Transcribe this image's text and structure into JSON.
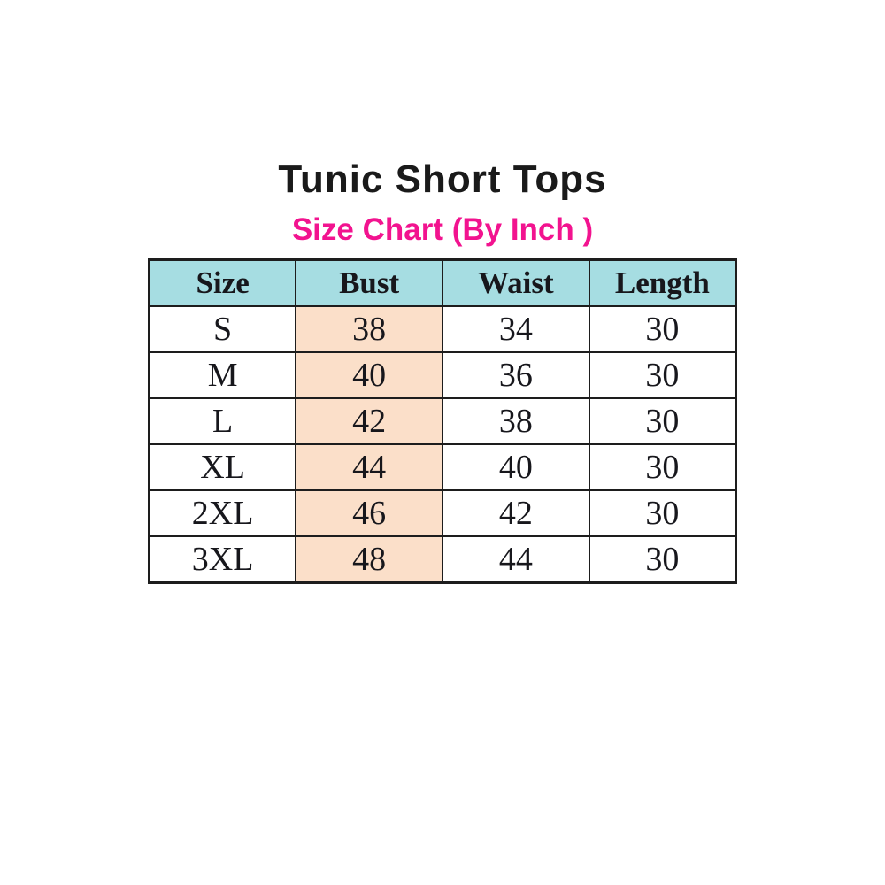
{
  "header": {
    "title": "Tunic Short Tops",
    "subtitle": "Size Chart (By Inch )"
  },
  "chart_data": {
    "type": "table",
    "title": "Tunic Short Tops",
    "subtitle": "Size Chart (By Inch )",
    "unit": "inch",
    "columns": [
      "Size",
      "Bust",
      "Waist",
      "Length"
    ],
    "rows": [
      [
        "S",
        38,
        34,
        30
      ],
      [
        "M",
        40,
        36,
        30
      ],
      [
        "L",
        42,
        38,
        30
      ],
      [
        "XL",
        44,
        40,
        30
      ],
      [
        "2XL",
        46,
        42,
        30
      ],
      [
        "3XL",
        48,
        44,
        30
      ]
    ],
    "highlighted_column": "Bust"
  },
  "colors": {
    "page_bg": "#ffffff",
    "title_text": "#1a1a1a",
    "subtitle_text": "#f2138f",
    "header_row_bg": "#a6dde2",
    "bust_column_bg": "#fbdfc9",
    "table_border": "#1d1d1d",
    "cell_text": "#17171c"
  }
}
